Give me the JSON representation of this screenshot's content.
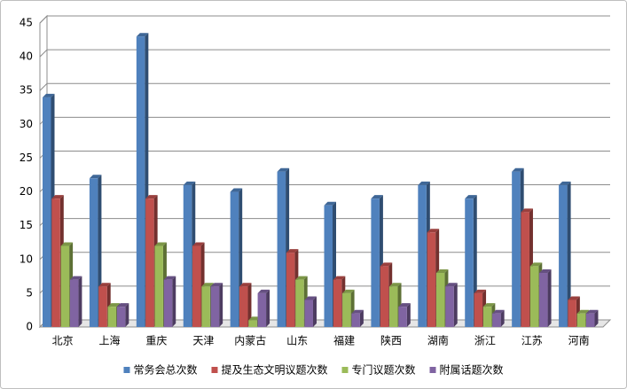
{
  "chart_data": {
    "type": "bar3d",
    "categories": [
      "北京",
      "上海",
      "重庆",
      "天津",
      "内蒙古",
      "山东",
      "福建",
      "陕西",
      "湖南",
      "浙江",
      "江苏",
      "河南"
    ],
    "series": [
      {
        "name": "常务会总次数",
        "color": "#4f81bd",
        "values": [
          34,
          22,
          43,
          21,
          20,
          23,
          18,
          19,
          21,
          19,
          23,
          21
        ]
      },
      {
        "name": "提及生态文明议题次数",
        "color": "#c0504d",
        "values": [
          19,
          6,
          19,
          12,
          6,
          11,
          7,
          9,
          14,
          5,
          17,
          4
        ]
      },
      {
        "name": "专门议题次数",
        "color": "#9bbb59",
        "values": [
          12,
          3,
          12,
          6,
          1,
          7,
          5,
          6,
          8,
          3,
          9,
          2
        ]
      },
      {
        "name": "附属话题次数",
        "color": "#8064a2",
        "values": [
          7,
          3,
          7,
          6,
          5,
          4,
          2,
          3,
          6,
          2,
          8,
          2
        ]
      }
    ],
    "ylim": [
      0,
      45
    ],
    "yticks": [
      0,
      5,
      10,
      15,
      20,
      25,
      30,
      35,
      40,
      45
    ],
    "grid": true,
    "legend": "bottom"
  }
}
